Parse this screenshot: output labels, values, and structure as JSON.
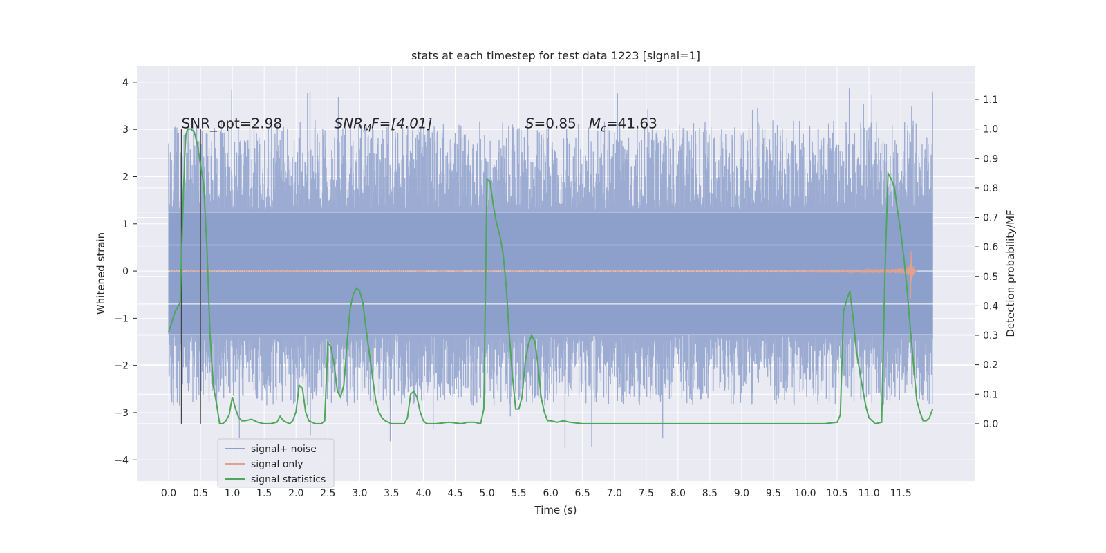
{
  "chart_data": {
    "type": "line",
    "title": "stats at each timestep for test data 1223 [signal=1]",
    "xlabel": "Time (s)",
    "ylabel_left": "Whitened strain",
    "ylabel_right": "Detection probability/MF",
    "xlim": [
      -0.5,
      12.66
    ],
    "ylim_left": [
      -4.45,
      4.35
    ],
    "ylim_right": [
      -0.195,
      1.215
    ],
    "xticks": [
      0.0,
      0.5,
      1.0,
      1.5,
      2.0,
      2.5,
      3.0,
      3.5,
      4.0,
      4.5,
      5.0,
      5.5,
      6.0,
      6.5,
      7.0,
      7.5,
      8.0,
      8.5,
      9.0,
      9.5,
      10.0,
      10.5,
      11.0,
      11.5
    ],
    "xtick_labels": [
      "0.0",
      "0.5",
      "1.0",
      "1.5",
      "2.0",
      "2.5",
      "3.0",
      "3.5",
      "4.0",
      "4.5",
      "5.0",
      "5.5",
      "6.0",
      "6.5",
      "7.0",
      "7.5",
      "8.0",
      "8.5",
      "9.0",
      "9.5",
      "10.0",
      "10.5",
      "11.0",
      "11.5"
    ],
    "yticks_left": [
      -4,
      -3,
      -2,
      -1,
      0,
      1,
      2,
      3,
      4
    ],
    "ytick_labels_left": [
      "−4",
      "−3",
      "−2",
      "−1",
      "0",
      "1",
      "2",
      "3",
      "4"
    ],
    "yticks_right": [
      0.0,
      0.1,
      0.2,
      0.3,
      0.4,
      0.5,
      0.6,
      0.7,
      0.8,
      0.9,
      1.0,
      1.1
    ],
    "ytick_labels_right": [
      "0.0",
      "0.1",
      "0.2",
      "0.3",
      "0.4",
      "0.5",
      "0.6",
      "0.7",
      "0.8",
      "0.9",
      "1.0",
      "1.1"
    ],
    "grid": true,
    "legend_position": "lower-left",
    "annotations": {
      "snr_opt": "SNR_opt=2.98",
      "snr_mf_main": "SNR",
      "snr_mf_sub": "M",
      "snr_mf_rest": "F=[4.01]",
      "s_main": "S",
      "s_rest": "=0.85",
      "mc_main": "M",
      "mc_sub": "c",
      "mc_rest": "=41.63"
    },
    "vertical_markers_x": [
      0.2,
      0.5
    ],
    "series": [
      {
        "name": "signal+ noise",
        "color": "#8da0cb",
        "axis": "left",
        "description_range": [
          -3.3,
          3.9
        ],
        "x_range": [
          0.0,
          12.0
        ],
        "band_low": -1.35,
        "band_high": 1.25
      },
      {
        "name": "signal only",
        "color": "#e2a18d",
        "axis": "left",
        "chirp": {
          "start": 0.0,
          "merger": 11.65,
          "peak_amplitude": 0.72
        }
      },
      {
        "name": "signal statistics",
        "color": "#4ea65a",
        "axis": "right",
        "x": [
          0.0,
          0.1,
          0.18,
          0.22,
          0.25,
          0.27,
          0.3,
          0.35,
          0.4,
          0.45,
          0.5,
          0.55,
          0.6,
          0.65,
          0.7,
          0.75,
          0.8,
          0.85,
          0.9,
          0.95,
          1.0,
          1.05,
          1.1,
          1.15,
          1.2,
          1.3,
          1.4,
          1.5,
          1.6,
          1.7,
          1.75,
          1.8,
          1.85,
          1.9,
          1.95,
          2.0,
          2.05,
          2.1,
          2.15,
          2.2,
          2.3,
          2.4,
          2.45,
          2.5,
          2.55,
          2.6,
          2.65,
          2.7,
          2.75,
          2.8,
          2.85,
          2.9,
          2.95,
          3.0,
          3.05,
          3.1,
          3.15,
          3.2,
          3.25,
          3.3,
          3.35,
          3.4,
          3.5,
          3.6,
          3.7,
          3.75,
          3.8,
          3.85,
          3.9,
          3.95,
          4.0,
          4.05,
          4.1,
          4.2,
          4.4,
          4.6,
          4.7,
          4.8,
          4.9,
          4.95,
          5.0,
          5.05,
          5.1,
          5.15,
          5.2,
          5.25,
          5.3,
          5.35,
          5.4,
          5.45,
          5.5,
          5.55,
          5.6,
          5.65,
          5.7,
          5.75,
          5.8,
          5.85,
          5.9,
          5.95,
          6.0,
          6.1,
          6.2,
          6.3,
          6.5,
          7.0,
          7.3,
          7.5,
          8.0,
          8.5,
          9.0,
          9.5,
          10.0,
          10.3,
          10.5,
          10.55,
          10.6,
          10.65,
          10.7,
          10.75,
          10.8,
          10.9,
          10.95,
          11.0,
          11.1,
          11.2,
          11.25,
          11.3,
          11.35,
          11.4,
          11.45,
          11.5,
          11.55,
          11.6,
          11.65,
          11.7,
          11.75,
          11.8,
          11.85,
          11.9,
          11.95,
          12.0
        ],
        "values": [
          0.31,
          0.38,
          0.41,
          0.7,
          0.9,
          0.98,
          1.0,
          1.0,
          0.99,
          0.95,
          0.88,
          0.81,
          0.6,
          0.3,
          0.13,
          0.07,
          0.0,
          0.0,
          0.01,
          0.03,
          0.09,
          0.05,
          0.02,
          0.01,
          0.01,
          0.015,
          0.005,
          0.0,
          0.0,
          0.005,
          0.025,
          0.01,
          0.005,
          0.0,
          0.01,
          0.04,
          0.13,
          0.12,
          0.04,
          0.01,
          0.0,
          0.0,
          0.01,
          0.275,
          0.26,
          0.2,
          0.11,
          0.09,
          0.13,
          0.27,
          0.39,
          0.44,
          0.46,
          0.45,
          0.41,
          0.32,
          0.24,
          0.16,
          0.08,
          0.04,
          0.02,
          0.01,
          0.0,
          0.0,
          0.0,
          0.02,
          0.1,
          0.11,
          0.09,
          0.04,
          0.01,
          0.0,
          0.0,
          0.0,
          0.005,
          0.0,
          0.005,
          0.005,
          0.0,
          0.05,
          0.83,
          0.82,
          0.74,
          0.68,
          0.64,
          0.58,
          0.47,
          0.3,
          0.16,
          0.05,
          0.05,
          0.09,
          0.21,
          0.27,
          0.3,
          0.28,
          0.2,
          0.09,
          0.04,
          0.01,
          0.01,
          0.005,
          0.01,
          0.005,
          0.0,
          0.0,
          0.0,
          0.0,
          0.0,
          0.0,
          0.0,
          0.0,
          0.0,
          0.0,
          0.005,
          0.03,
          0.38,
          0.42,
          0.45,
          0.36,
          0.25,
          0.12,
          0.06,
          0.02,
          0.0,
          0.005,
          0.5,
          0.85,
          0.83,
          0.8,
          0.72,
          0.65,
          0.56,
          0.45,
          0.32,
          0.2,
          0.08,
          0.04,
          0.01,
          0.01,
          0.02,
          0.05
        ]
      }
    ]
  }
}
